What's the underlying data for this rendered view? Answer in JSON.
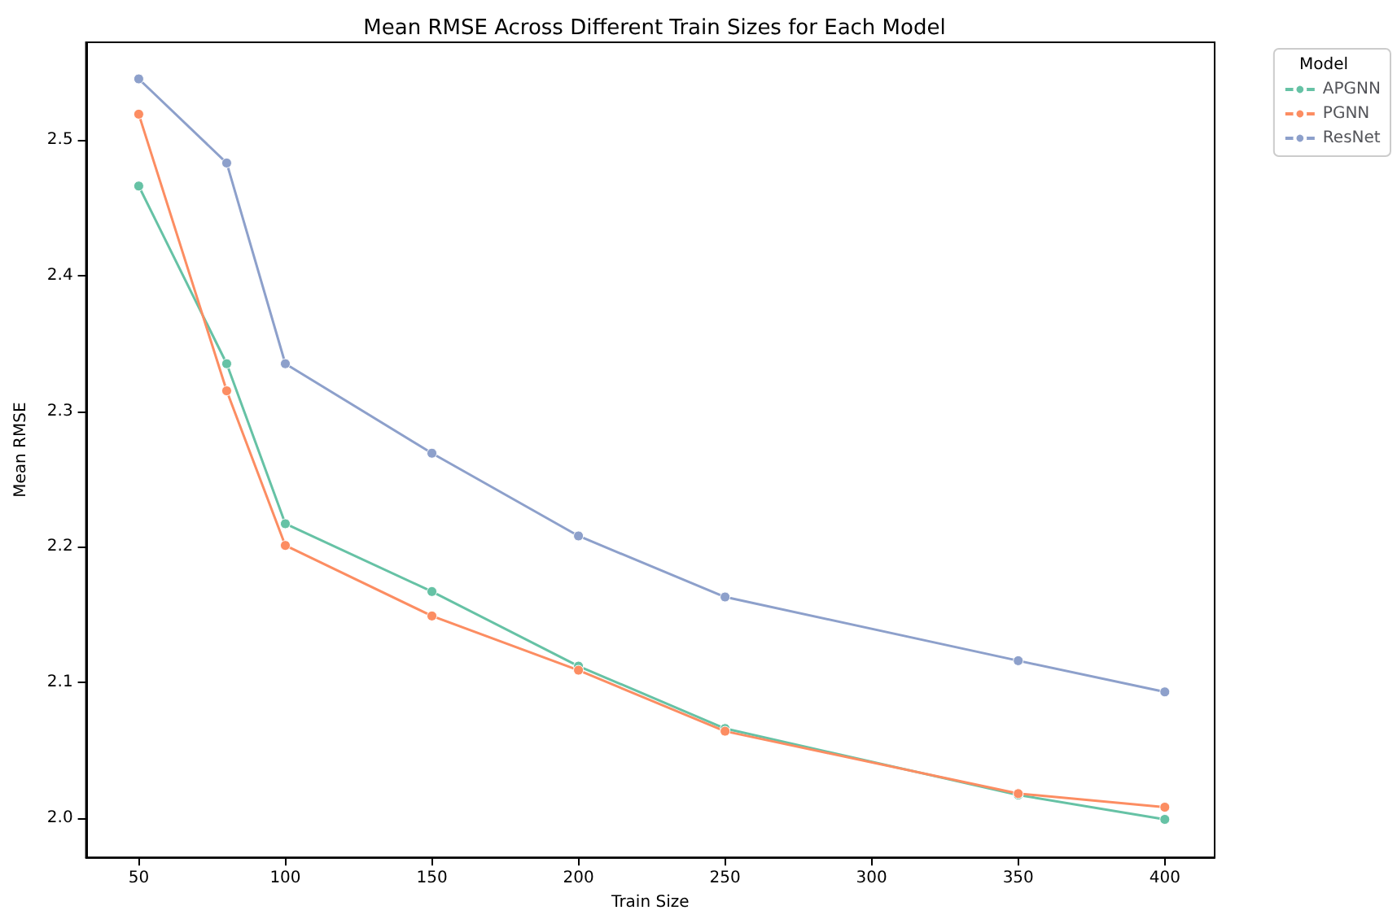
{
  "chart_data": {
    "type": "line",
    "title": "Mean RMSE Across Different Train Sizes for Each Model",
    "xlabel": "Train Size",
    "ylabel": "Mean RMSE",
    "legend_title": "Model",
    "x": [
      50,
      80,
      100,
      150,
      200,
      250,
      350,
      400
    ],
    "series": [
      {
        "name": "APGNN",
        "color": "#66c2a5",
        "values": [
          2.466,
          2.335,
          2.217,
          2.167,
          2.112,
          2.066,
          2.017,
          1.999
        ]
      },
      {
        "name": "PGNN",
        "color": "#fc8d62",
        "values": [
          2.519,
          2.315,
          2.201,
          2.149,
          2.109,
          2.064,
          2.018,
          2.008
        ]
      },
      {
        "name": "ResNet",
        "color": "#8da0cb",
        "values": [
          2.545,
          2.483,
          2.335,
          2.269,
          2.208,
          2.163,
          2.116,
          2.093
        ]
      }
    ],
    "xlim": [
      32,
      417
    ],
    "xticks": [
      50,
      100,
      150,
      200,
      250,
      300,
      350,
      400
    ],
    "ylim": [
      1.971,
      2.572
    ],
    "yticks": [
      {
        "value": 2,
        "label": "2.0"
      },
      {
        "value": 2.1,
        "label": "2.1"
      },
      {
        "value": 2.2,
        "label": "2.2"
      },
      {
        "value": 2.3,
        "label": "2.3"
      },
      {
        "value": 2.4,
        "label": "2.4"
      },
      {
        "value": 2.5,
        "label": "2.5"
      }
    ],
    "grid": false,
    "legend": "top right",
    "marker": "circle",
    "line_style": "solid"
  }
}
